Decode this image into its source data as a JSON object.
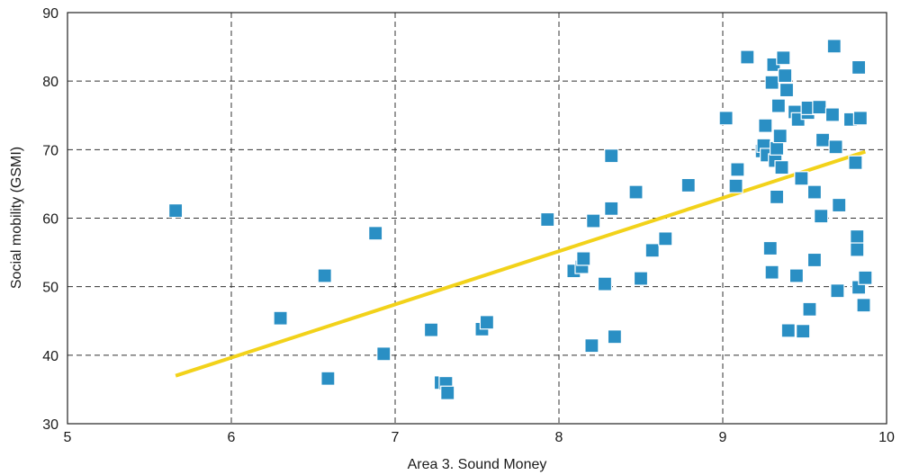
{
  "chart_data": {
    "type": "scatter",
    "title": "",
    "xlabel": "Area 3. Sound Money",
    "ylabel": "Social mobility (GSMI)",
    "xlim": [
      5,
      10
    ],
    "ylim": [
      30,
      90
    ],
    "x_ticks": [
      "5",
      "6",
      "7",
      "8",
      "9",
      "10"
    ],
    "y_ticks": [
      "30",
      "40",
      "50",
      "60",
      "70",
      "80",
      "90"
    ],
    "grid": true,
    "colors": {
      "points": "#2a8fc4",
      "trend": "#f2d21a",
      "grid": "#333333"
    },
    "series": [
      {
        "points": [
          [
            5.66,
            61.1
          ],
          [
            6.3,
            45.4
          ],
          [
            6.57,
            51.6
          ],
          [
            6.59,
            36.6
          ],
          [
            6.88,
            57.8
          ],
          [
            6.93,
            40.2
          ],
          [
            7.22,
            43.7
          ],
          [
            7.28,
            36.0
          ],
          [
            7.31,
            35.9
          ],
          [
            7.32,
            34.5
          ],
          [
            7.53,
            43.8
          ],
          [
            7.56,
            44.8
          ],
          [
            7.93,
            59.8
          ],
          [
            8.09,
            52.3
          ],
          [
            8.14,
            52.9
          ],
          [
            8.15,
            54.1
          ],
          [
            8.2,
            41.4
          ],
          [
            8.21,
            59.6
          ],
          [
            8.28,
            50.4
          ],
          [
            8.32,
            69.1
          ],
          [
            8.32,
            61.4
          ],
          [
            8.34,
            42.7
          ],
          [
            8.47,
            63.8
          ],
          [
            8.5,
            51.2
          ],
          [
            8.57,
            55.3
          ],
          [
            8.65,
            57.0
          ],
          [
            8.79,
            64.8
          ],
          [
            9.02,
            74.6
          ],
          [
            9.08,
            64.7
          ],
          [
            9.09,
            67.1
          ],
          [
            9.15,
            83.5
          ],
          [
            9.24,
            69.8
          ],
          [
            9.25,
            70.6
          ],
          [
            9.26,
            73.5
          ],
          [
            9.27,
            69.2
          ],
          [
            9.29,
            55.6
          ],
          [
            9.3,
            52.1
          ],
          [
            9.3,
            79.8
          ],
          [
            9.31,
            82.4
          ],
          [
            9.32,
            68.4
          ],
          [
            9.33,
            63.1
          ],
          [
            9.33,
            70.2
          ],
          [
            9.34,
            76.4
          ],
          [
            9.35,
            72.0
          ],
          [
            9.36,
            67.4
          ],
          [
            9.37,
            83.4
          ],
          [
            9.38,
            80.8
          ],
          [
            9.39,
            78.7
          ],
          [
            9.4,
            43.6
          ],
          [
            9.44,
            75.5
          ],
          [
            9.45,
            51.6
          ],
          [
            9.46,
            74.4
          ],
          [
            9.48,
            65.8
          ],
          [
            9.49,
            43.5
          ],
          [
            9.52,
            75.4
          ],
          [
            9.52,
            76.1
          ],
          [
            9.53,
            46.7
          ],
          [
            9.56,
            53.9
          ],
          [
            9.56,
            63.8
          ],
          [
            9.59,
            76.2
          ],
          [
            9.6,
            60.3
          ],
          [
            9.61,
            71.4
          ],
          [
            9.67,
            75.1
          ],
          [
            9.68,
            85.1
          ],
          [
            9.69,
            70.4
          ],
          [
            9.7,
            49.4
          ],
          [
            9.71,
            61.9
          ],
          [
            9.78,
            74.4
          ],
          [
            9.81,
            68.1
          ],
          [
            9.82,
            57.3
          ],
          [
            9.82,
            55.4
          ],
          [
            9.83,
            82.0
          ],
          [
            9.83,
            49.9
          ],
          [
            9.84,
            74.6
          ],
          [
            9.86,
            47.3
          ],
          [
            9.87,
            51.3
          ]
        ]
      }
    ],
    "trendline": {
      "x": [
        5.66,
        9.87
      ],
      "y": [
        37.0,
        69.7
      ]
    }
  }
}
